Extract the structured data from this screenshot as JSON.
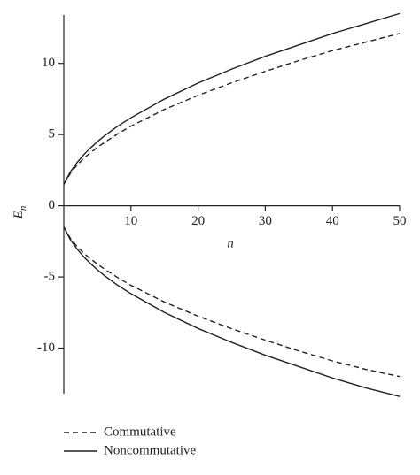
{
  "chart_data": {
    "type": "line",
    "x_label": "n",
    "y_label": "E",
    "y_label_subscript": "n",
    "x": [
      0,
      1,
      2,
      3,
      4,
      5,
      6,
      8,
      10,
      15,
      20,
      25,
      30,
      35,
      40,
      45,
      50
    ],
    "series": [
      {
        "name": "Commutative",
        "color": "#222222",
        "dash": true,
        "values": [
          1.5,
          2.3,
          2.87,
          3.34,
          3.74,
          4.1,
          4.43,
          5.04,
          5.59,
          6.77,
          7.76,
          8.64,
          9.44,
          10.2,
          10.9,
          11.5,
          12.1
        ],
        "lower_values": [
          -1.5,
          -2.3,
          -2.87,
          -3.34,
          -3.74,
          -4.1,
          -4.43,
          -5.04,
          -5.59,
          -6.77,
          -7.76,
          -8.64,
          -9.44,
          -10.2,
          -10.9,
          -11.5,
          -12.0
        ]
      },
      {
        "name": "Noncommutative",
        "color": "#222222",
        "dash": false,
        "values": [
          1.5,
          2.4,
          3.05,
          3.6,
          4.07,
          4.5,
          4.89,
          5.58,
          6.18,
          7.5,
          8.62,
          9.6,
          10.5,
          11.3,
          12.1,
          12.8,
          13.5
        ],
        "lower_values": [
          -1.5,
          -2.4,
          -3.05,
          -3.6,
          -4.07,
          -4.5,
          -4.89,
          -5.58,
          -6.18,
          -7.5,
          -8.62,
          -9.6,
          -10.5,
          -11.3,
          -12.1,
          -12.8,
          -13.4
        ]
      }
    ],
    "xlim": [
      0,
      50
    ],
    "xticks": [
      10,
      20,
      30,
      40,
      50
    ],
    "ylim": [
      -13.2,
      13.4
    ],
    "yticks": [
      -10,
      -5,
      0,
      5,
      10
    ],
    "legend": "bottom-left"
  }
}
